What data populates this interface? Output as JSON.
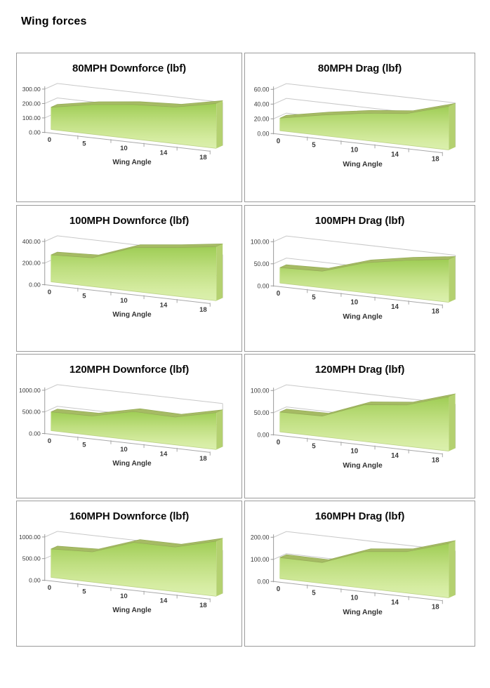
{
  "page": {
    "title": "Wing forces"
  },
  "colors": {
    "area_gradient_top": "#9fcd55",
    "area_gradient_mid": "#bede7f",
    "area_gradient_low": "#d5eca1",
    "area_gradient_bottom": "#dbf0ae",
    "area_top_surface": "#a6bb64",
    "area_top_surface_edge": "#93a956",
    "area_side_face": "#b4d170",
    "area_left_edge": "#c6e090",
    "area_bottom_edge": "#b3ca79",
    "gridline": "#c8c8c8",
    "axis_line": "#9a9a9a",
    "floor_line": "#a8a8a8",
    "box_border": "#9b9b9b",
    "text": "#3a3a3a"
  },
  "chart_data": [
    {
      "type": "area",
      "style": "3d-area",
      "title": "80MPH Downforce (lbf)",
      "categories": [
        "0",
        "5",
        "10",
        "14",
        "18"
      ],
      "values": [
        155,
        185,
        195,
        190,
        215
      ],
      "xlabel": "Wing Angle",
      "ylabel": "",
      "ylim": [
        0,
        300
      ],
      "yticks": [
        "0.00",
        "100.00",
        "200.00",
        "300.00"
      ],
      "grid": true,
      "legend": "none"
    },
    {
      "type": "area",
      "style": "3d-area",
      "title": "80MPH Drag (lbf)",
      "categories": [
        "0",
        "5",
        "10",
        "14",
        "18"
      ],
      "values": [
        17,
        25,
        30,
        32,
        41
      ],
      "xlabel": "Wing Angle",
      "ylabel": "",
      "ylim": [
        0,
        60
      ],
      "yticks": [
        "0.00",
        "20.00",
        "40.00",
        "60.00"
      ],
      "grid": true,
      "legend": "none"
    },
    {
      "type": "area",
      "style": "3d-area",
      "title": "100MPH Downforce (lbf)",
      "categories": [
        "0",
        "5",
        "10",
        "14",
        "18"
      ],
      "values": [
        250,
        240,
        330,
        335,
        345
      ],
      "xlabel": "Wing Angle",
      "ylabel": "",
      "ylim": [
        0,
        400
      ],
      "yticks": [
        "0.00",
        "200.00",
        "400.00"
      ],
      "grid": true,
      "legend": "none"
    },
    {
      "type": "area",
      "style": "3d-area",
      "title": "100MPH Drag (lbf)",
      "categories": [
        "0",
        "5",
        "10",
        "14",
        "18"
      ],
      "values": [
        35,
        34,
        55,
        63,
        67
      ],
      "xlabel": "Wing Angle",
      "ylabel": "",
      "ylim": [
        0,
        100
      ],
      "yticks": [
        "0.00",
        "50.00",
        "100.00"
      ],
      "grid": true,
      "legend": "none"
    },
    {
      "type": "area",
      "style": "3d-area",
      "title": "120MPH Downforce (lbf)",
      "categories": [
        "0",
        "5",
        "10",
        "14",
        "18"
      ],
      "values": [
        435,
        405,
        540,
        480,
        590
      ],
      "xlabel": "Wing Angle",
      "ylabel": "",
      "ylim": [
        0,
        1000
      ],
      "yticks": [
        "0.00",
        "500.00",
        "1000.00"
      ],
      "grid": true,
      "legend": "none"
    },
    {
      "type": "area",
      "style": "3d-area",
      "title": "120MPH Drag (lbf)",
      "categories": [
        "0",
        "5",
        "10",
        "14",
        "18"
      ],
      "values": [
        45,
        42,
        68,
        70,
        85
      ],
      "xlabel": "Wing Angle",
      "ylabel": "",
      "ylim": [
        0,
        100
      ],
      "yticks": [
        "0.00",
        "50.00",
        "100.00"
      ],
      "grid": true,
      "legend": "none"
    },
    {
      "type": "area",
      "style": "3d-area",
      "title": "160MPH Downforce (lbf)",
      "categories": [
        "0",
        "5",
        "10",
        "14",
        "18"
      ],
      "values": [
        660,
        630,
        840,
        770,
        880
      ],
      "xlabel": "Wing Angle",
      "ylabel": "",
      "ylim": [
        0,
        1000
      ],
      "yticks": [
        "0.00",
        "500.00",
        "1000.00"
      ],
      "grid": true,
      "legend": "none"
    },
    {
      "type": "area",
      "style": "3d-area",
      "title": "160MPH Drag (lbf)",
      "categories": [
        "0",
        "5",
        "10",
        "14",
        "18"
      ],
      "values": [
        95,
        85,
        135,
        140,
        170
      ],
      "xlabel": "Wing Angle",
      "ylabel": "",
      "ylim": [
        0,
        200
      ],
      "yticks": [
        "0.00",
        "100.00",
        "200.00"
      ],
      "grid": true,
      "legend": "none"
    }
  ]
}
